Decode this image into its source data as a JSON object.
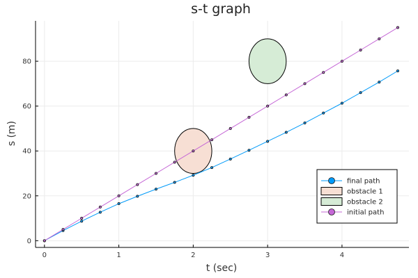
{
  "chart_data": {
    "type": "line",
    "title": "s-t graph",
    "xlabel": "t (sec)",
    "ylabel": "s (m)",
    "xlim": [
      -0.12,
      4.9
    ],
    "ylim": [
      -3,
      98
    ],
    "xticks": [
      0,
      1,
      2,
      3,
      4
    ],
    "yticks": [
      0,
      20,
      40,
      60,
      80
    ],
    "grid": true,
    "legend_position": "bottom-right",
    "series": [
      {
        "name": "final path",
        "type": "line-with-markers",
        "color": "#009af9",
        "x": [
          0,
          0.25,
          0.5,
          0.75,
          1.0,
          1.25,
          1.5,
          1.75,
          2.0,
          2.25,
          2.5,
          2.75,
          3.0,
          3.25,
          3.5,
          3.75,
          4.0,
          4.25,
          4.5,
          4.75
        ],
        "y": [
          0,
          4.5,
          8.7,
          12.7,
          16.5,
          19.8,
          23.0,
          26.0,
          29.2,
          32.6,
          36.4,
          40.3,
          44.3,
          48.3,
          52.5,
          56.9,
          61.3,
          66.0,
          70.7,
          75.7
        ]
      },
      {
        "name": "obstacle 1",
        "type": "ellipse",
        "color": "#f7dfd4",
        "center": [
          2.0,
          40
        ],
        "radius": [
          0.25,
          10
        ]
      },
      {
        "name": "obstacle 2",
        "type": "ellipse",
        "color": "#d6ecd6",
        "center": [
          3.0,
          80
        ],
        "radius": [
          0.25,
          10
        ]
      },
      {
        "name": "initial path",
        "type": "line-with-markers",
        "color": "#c567d6",
        "x": [
          0,
          0.25,
          0.5,
          0.75,
          1.0,
          1.25,
          1.5,
          1.75,
          2.0,
          2.25,
          2.5,
          2.75,
          3.0,
          3.25,
          3.5,
          3.75,
          4.0,
          4.25,
          4.5,
          4.75
        ],
        "y": [
          0,
          5,
          10,
          15,
          20,
          25,
          30,
          35,
          40,
          45,
          50,
          55,
          60,
          65,
          70,
          75,
          80,
          85,
          90,
          95
        ]
      }
    ]
  }
}
